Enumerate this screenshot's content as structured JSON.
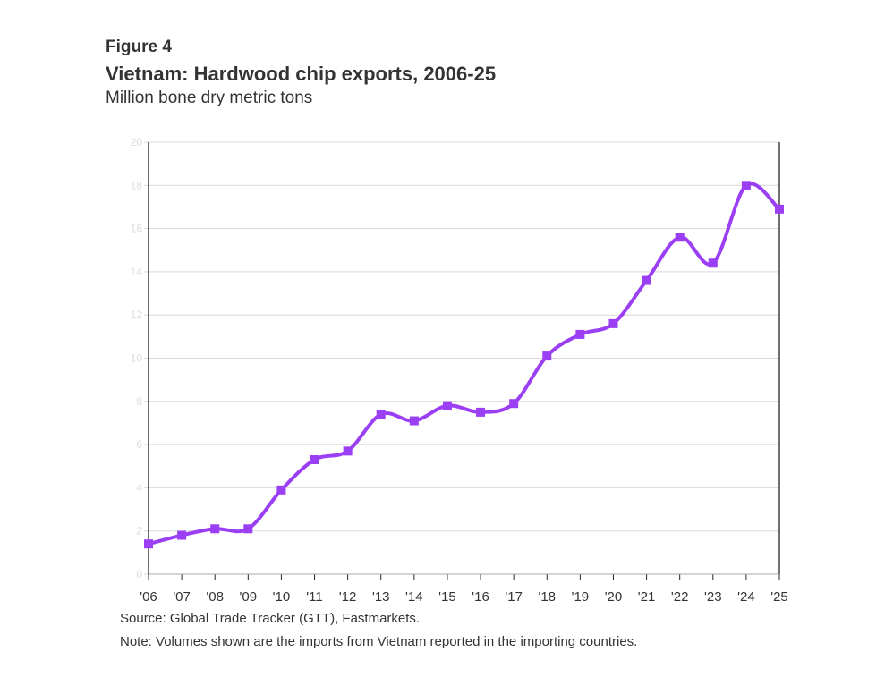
{
  "header": {
    "figure_label": "Figure 4",
    "title": "Vietnam: Hardwood chip exports, 2006-25",
    "subtitle": "Million bone dry metric tons"
  },
  "footer": {
    "source": "Source: Global Trade Tracker (GTT), Fastmarkets.",
    "note": "Note: Volumes shown are the imports from Vietnam reported in the importing countries."
  },
  "colors": {
    "series": "#9B3FF5",
    "grid": "#d9d9d9",
    "axis": "#222222",
    "ytick_text": "#dddddd",
    "xtick_text": "#333333"
  },
  "chart_data": {
    "type": "line",
    "title": "Vietnam: Hardwood chip exports, 2006-25",
    "ylabel": "Million bone dry metric tons",
    "categories": [
      "'06",
      "'07",
      "'08",
      "'09",
      "'10",
      "'11",
      "'12",
      "'13",
      "'14",
      "'15",
      "'16",
      "'17",
      "'18",
      "'19",
      "'20",
      "'21",
      "'22",
      "'23",
      "'24",
      "'25"
    ],
    "series": [
      {
        "values": [
          1.4,
          1.8,
          2.1,
          2.1,
          3.9,
          5.3,
          5.7,
          7.4,
          7.1,
          7.8,
          7.5,
          7.9,
          10.1,
          11.1,
          11.6,
          13.6,
          15.6,
          14.4,
          18.0,
          16.9
        ]
      }
    ],
    "yticks": [
      0,
      2,
      4,
      6,
      8,
      10,
      12,
      14,
      16,
      18,
      20
    ],
    "ylim": [
      0,
      20
    ],
    "grid": true,
    "legend": "none",
    "marker": "square",
    "smooth": true
  }
}
